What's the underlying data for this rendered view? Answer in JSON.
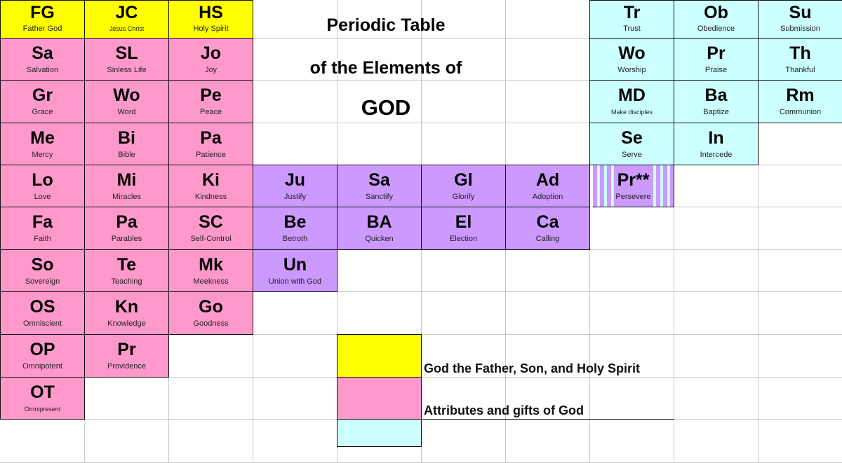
{
  "title": {
    "line1": "Periodic Table",
    "line2": "of the Elements of",
    "line3": "GOD"
  },
  "colors": {
    "trinity": "#ffff00",
    "attributes": "#ff99cc",
    "response": "#ccffff",
    "salvation": "#cc99ff"
  },
  "elements": {
    "FG": {
      "symbol": "FG",
      "name": "Father God"
    },
    "JC": {
      "symbol": "JC",
      "name": "Jesus Christ"
    },
    "HS": {
      "symbol": "HS",
      "name": "Holy Spirit"
    },
    "Sa1": {
      "symbol": "Sa",
      "name": "Salvation"
    },
    "SL": {
      "symbol": "SL",
      "name": "Sinless Life"
    },
    "Jo": {
      "symbol": "Jo",
      "name": "Joy"
    },
    "Gr": {
      "symbol": "Gr",
      "name": "Grace"
    },
    "Wo1": {
      "symbol": "Wo",
      "name": "Word"
    },
    "Pe": {
      "symbol": "Pe",
      "name": "Peace"
    },
    "Me": {
      "symbol": "Me",
      "name": "Mercy"
    },
    "Bi": {
      "symbol": "Bi",
      "name": "Bible"
    },
    "Pa1": {
      "symbol": "Pa",
      "name": "Patience"
    },
    "Lo": {
      "symbol": "Lo",
      "name": "Love"
    },
    "Mi": {
      "symbol": "Mi",
      "name": "Miracles"
    },
    "Ki": {
      "symbol": "Ki",
      "name": "Kindness"
    },
    "Fa": {
      "symbol": "Fa",
      "name": "Faith"
    },
    "Pa2": {
      "symbol": "Pa",
      "name": "Parables"
    },
    "SC": {
      "symbol": "SC",
      "name": "Self-Control"
    },
    "So": {
      "symbol": "So",
      "name": "Sovereign"
    },
    "Te": {
      "symbol": "Te",
      "name": "Teaching"
    },
    "Mk": {
      "symbol": "Mk",
      "name": "Meekness"
    },
    "OS": {
      "symbol": "OS",
      "name": "Omniscient"
    },
    "Kn": {
      "symbol": "Kn",
      "name": "Knowledge"
    },
    "Go": {
      "symbol": "Go",
      "name": "Goodness"
    },
    "OP": {
      "symbol": "OP",
      "name": "Omnipotent"
    },
    "Pr1": {
      "symbol": "Pr",
      "name": "Providence"
    },
    "OT": {
      "symbol": "OT",
      "name": "Omnipresent"
    },
    "Tr": {
      "symbol": "Tr",
      "name": "Trust"
    },
    "Ob": {
      "symbol": "Ob",
      "name": "Obedience"
    },
    "Su": {
      "symbol": "Su",
      "name": "Submission"
    },
    "Wo2": {
      "symbol": "Wo",
      "name": "Worship"
    },
    "Pr2": {
      "symbol": "Pr",
      "name": "Praise"
    },
    "Th": {
      "symbol": "Th",
      "name": "Thankful"
    },
    "MD": {
      "symbol": "MD",
      "name": "Make disciples"
    },
    "Ba": {
      "symbol": "Ba",
      "name": "Baptize"
    },
    "Rm": {
      "symbol": "Rm",
      "name": "Communion"
    },
    "Se": {
      "symbol": "Se",
      "name": "Serve"
    },
    "In": {
      "symbol": "In",
      "name": "Intercede"
    },
    "Ju": {
      "symbol": "Ju",
      "name": "Justify"
    },
    "Sa2": {
      "symbol": "Sa",
      "name": "Sanctify"
    },
    "Gl": {
      "symbol": "Gl",
      "name": "Glorify"
    },
    "Ad": {
      "symbol": "Ad",
      "name": "Adoption"
    },
    "Pr3": {
      "symbol": "Pr**",
      "name": "Persevere"
    },
    "Be": {
      "symbol": "Be",
      "name": "Betroth"
    },
    "BA": {
      "symbol": "BA",
      "name": "Quicken"
    },
    "El": {
      "symbol": "El",
      "name": "Election"
    },
    "Ca": {
      "symbol": "Ca",
      "name": "Calling"
    },
    "Un": {
      "symbol": "Un",
      "name": "Union with God"
    }
  },
  "legend": {
    "items": [
      {
        "label": "God the Father, Son, and Holy Spirit",
        "color": "#ffff00"
      },
      {
        "label": "Attributes and gifts of God",
        "color": "#ff99cc"
      },
      {
        "label": "",
        "color": "#ccffff"
      }
    ]
  }
}
